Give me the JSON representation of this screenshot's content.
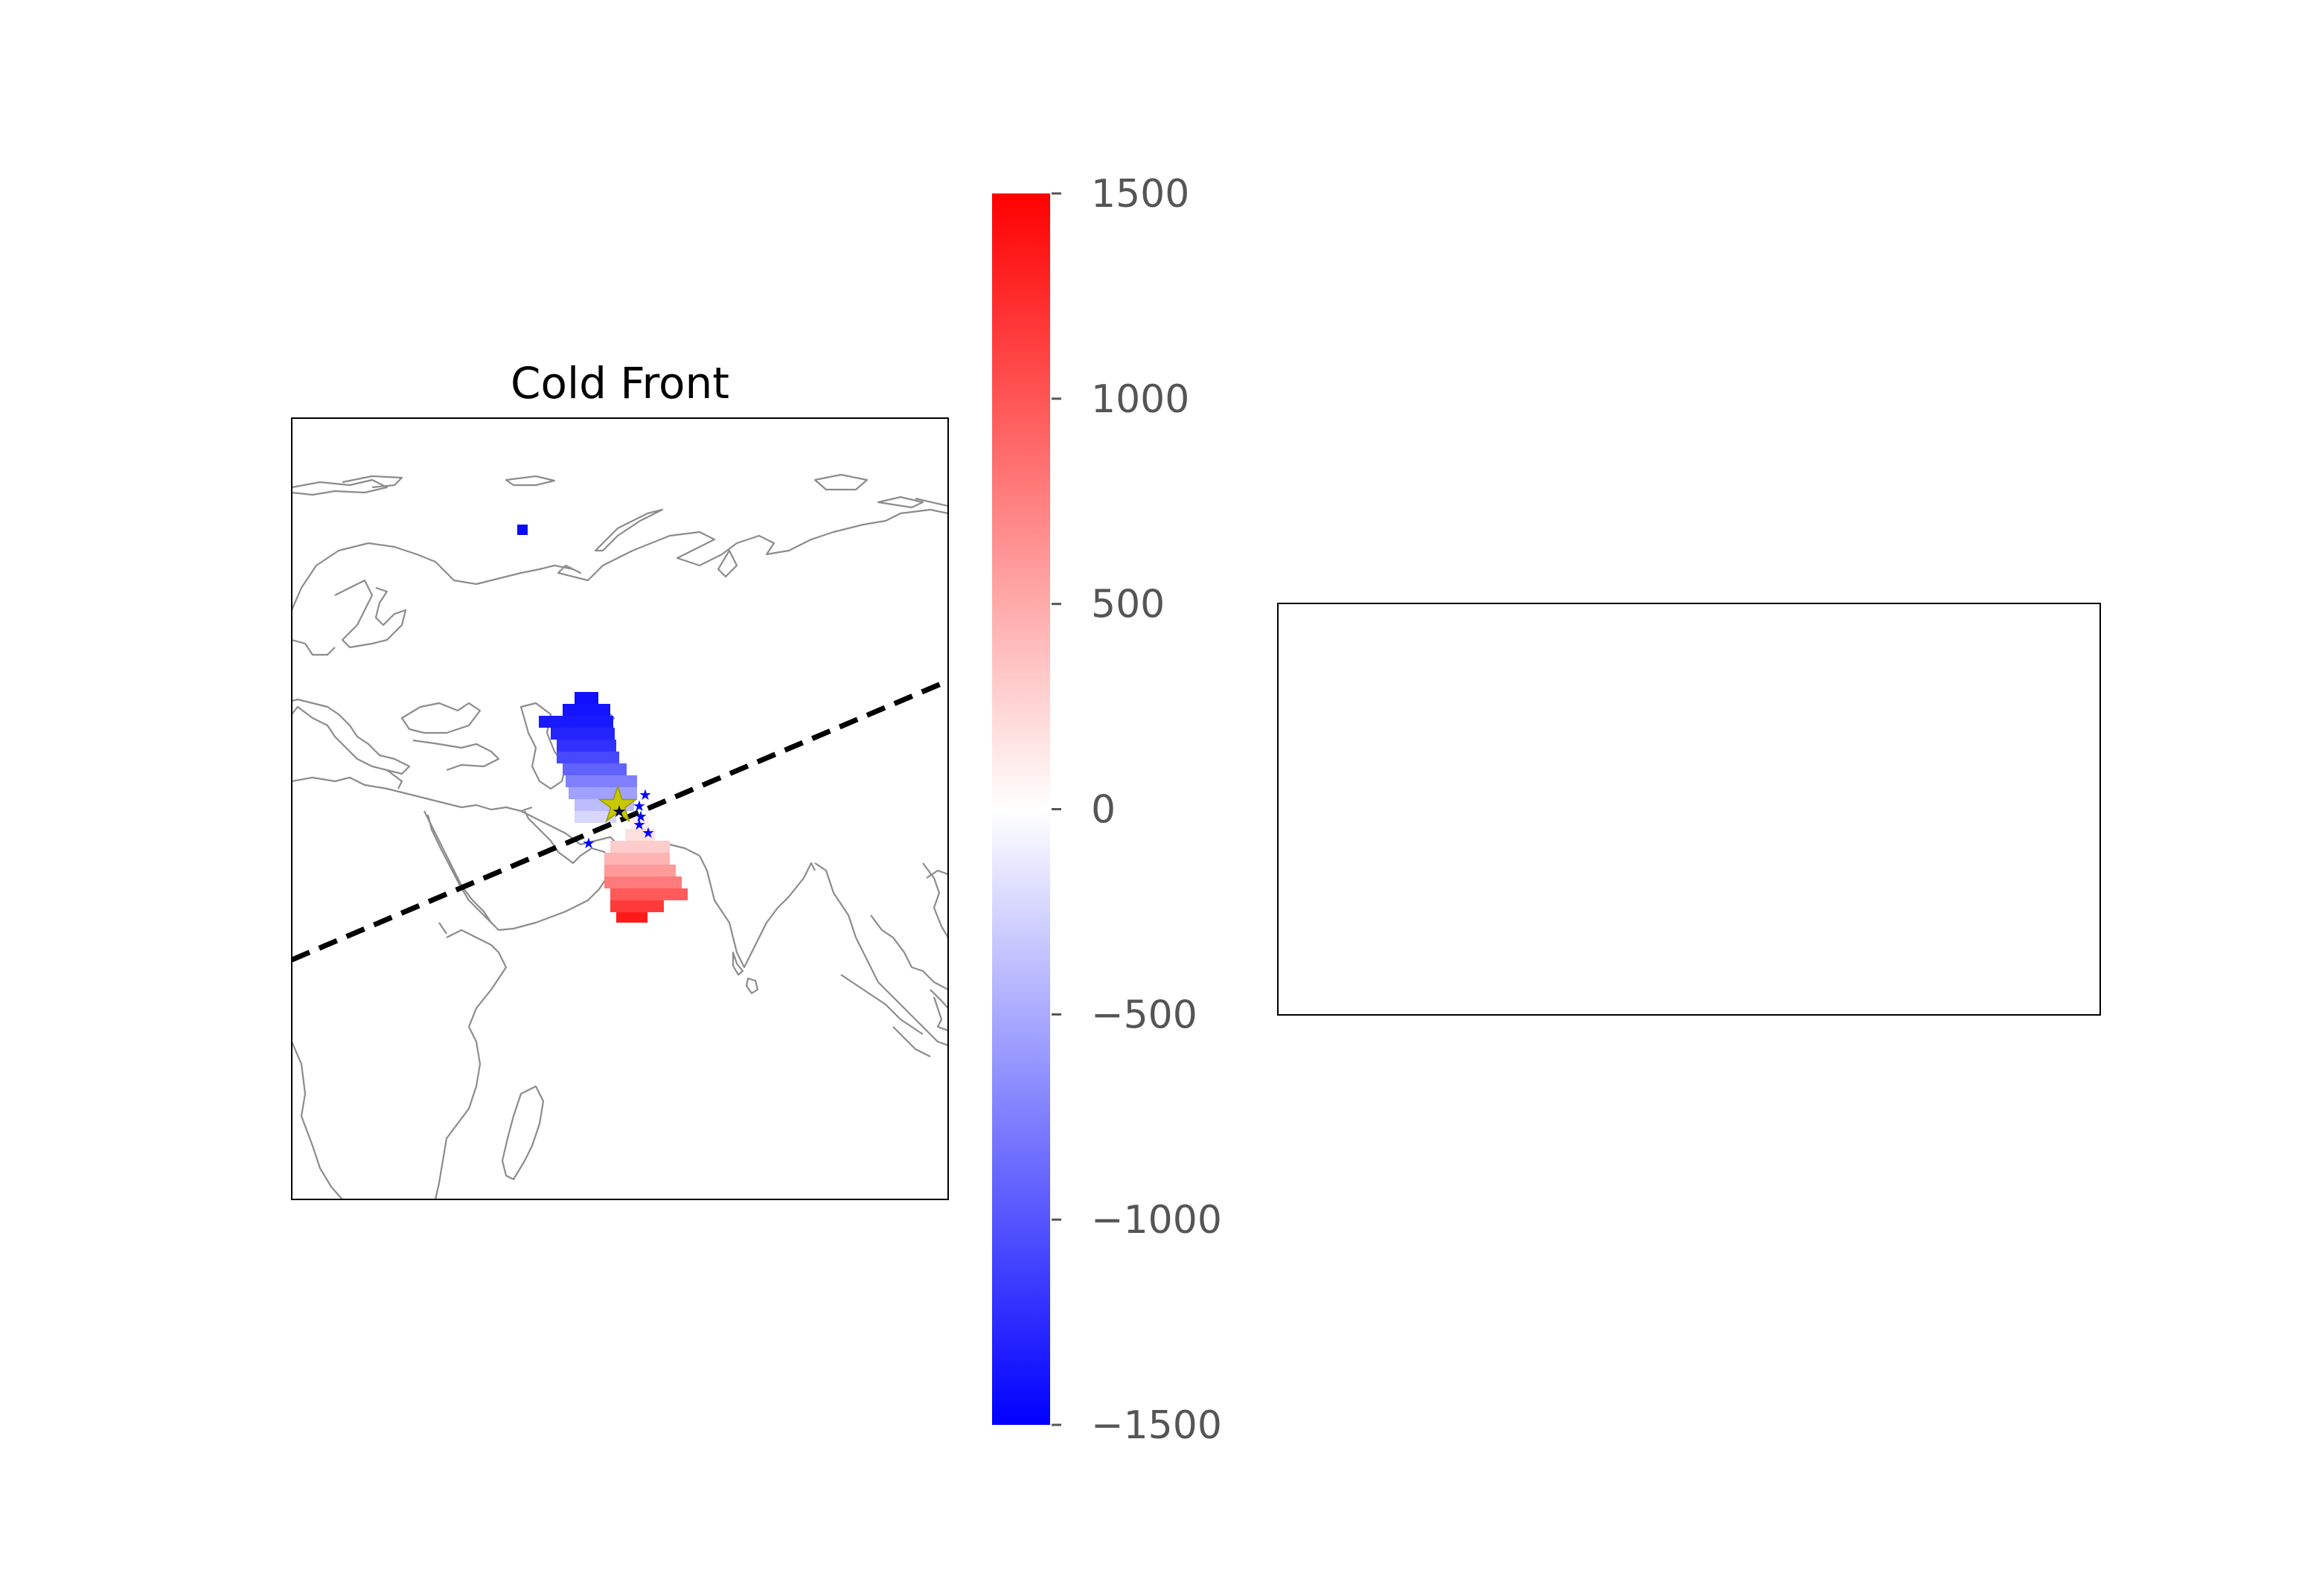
{
  "map_panel": {
    "title": "Cold Front",
    "front_line_style": "dashed",
    "front_line_color": "#000000",
    "region": "Europe, Middle East, Africa and South Asia"
  },
  "colorbar": {
    "cmap": "bwr",
    "min": -1500,
    "max": 1500,
    "ticks": [
      "1500",
      "1000",
      "500",
      "0",
      "−500",
      "−1000",
      "−1500"
    ],
    "tick_values": [
      1500,
      1000,
      500,
      0,
      -500,
      -1000,
      -1500
    ],
    "low_color": "#0000ff",
    "mid_color": "#ffffff",
    "high_color": "#ff0000"
  },
  "markers": {
    "center_star_color": "#c8c800",
    "station_star_color": "#0000ff"
  },
  "empty_panel": {}
}
